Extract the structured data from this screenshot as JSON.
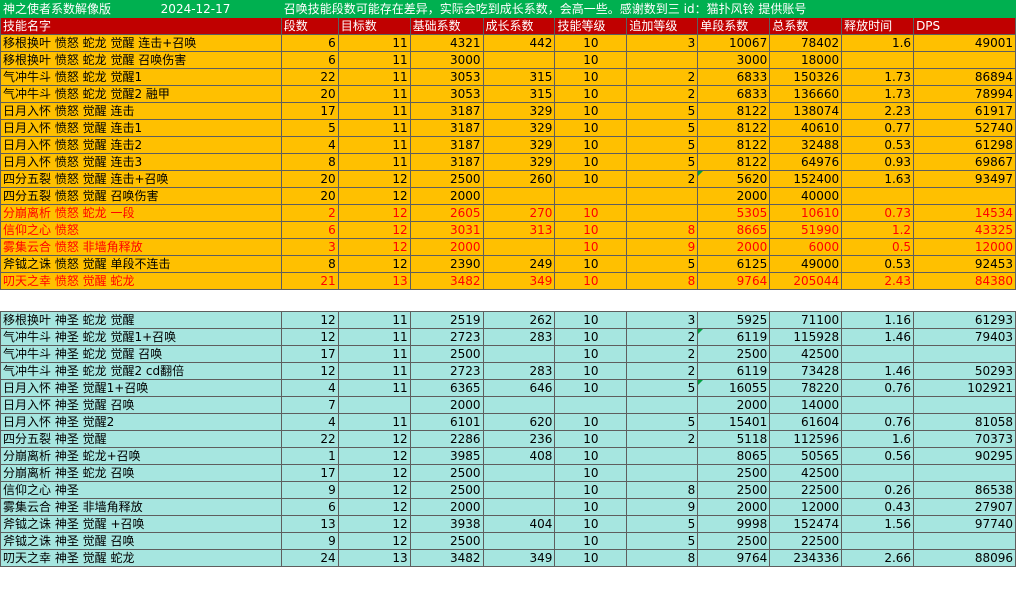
{
  "title": {
    "name": "神之使者系数解像版",
    "date": "2024-12-17",
    "note": "召唤技能段数可能存在差异，实际会吃到成长系数，会高一些。感谢数到三 id：猫扑风铃 提供账号"
  },
  "columns": [
    "技能名字",
    "段数",
    "目标数",
    "基础系数",
    "成长系数",
    "技能等级",
    "追加等级",
    "单段系数",
    "总系数",
    "释放时间",
    "DPS"
  ],
  "group_a": [
    [
      "移根换叶 愤怒 蛇龙 觉醒 连击+召唤",
      "6",
      "11",
      "4321",
      "442",
      "10",
      "3",
      "10067",
      "78402",
      "1.6",
      "49001"
    ],
    [
      "移根换叶 愤怒 蛇龙 觉醒 召唤伤害",
      "6",
      "11",
      "3000",
      "",
      "10",
      "",
      "3000",
      "18000",
      "",
      ""
    ],
    [
      "气冲牛斗 愤怒 蛇龙 觉醒1",
      "22",
      "11",
      "3053",
      "315",
      "10",
      "2",
      "6833",
      "150326",
      "1.73",
      "86894"
    ],
    [
      "气冲牛斗 愤怒 蛇龙 觉醒2 融甲",
      "20",
      "11",
      "3053",
      "315",
      "10",
      "2",
      "6833",
      "136660",
      "1.73",
      "78994"
    ],
    [
      "日月入怀 愤怒 觉醒 连击",
      "17",
      "11",
      "3187",
      "329",
      "10",
      "5",
      "8122",
      "138074",
      "2.23",
      "61917"
    ],
    [
      "日月入怀 愤怒 觉醒 连击1",
      "5",
      "11",
      "3187",
      "329",
      "10",
      "5",
      "8122",
      "40610",
      "0.77",
      "52740"
    ],
    [
      "日月入怀 愤怒 觉醒 连击2",
      "4",
      "11",
      "3187",
      "329",
      "10",
      "5",
      "8122",
      "32488",
      "0.53",
      "61298"
    ],
    [
      "日月入怀 愤怒 觉醒 连击3",
      "8",
      "11",
      "3187",
      "329",
      "10",
      "5",
      "8122",
      "64976",
      "0.93",
      "69867"
    ],
    [
      "四分五裂 愤怒 觉醒 连击+召唤",
      "20",
      "12",
      "2500",
      "260",
      "10",
      "2",
      "5620",
      "152400",
      "1.63",
      "93497"
    ],
    [
      "四分五裂 愤怒 觉醒 召唤伤害",
      "20",
      "12",
      "2000",
      "",
      "",
      "",
      "2000",
      "40000",
      "",
      ""
    ],
    [
      "分崩离析 愤怒 蛇龙  一段",
      "2",
      "12",
      "2605",
      "270",
      "10",
      "",
      "5305",
      "10610",
      "0.73",
      "14534"
    ],
    [
      "信仰之心 愤怒",
      "6",
      "12",
      "3031",
      "313",
      "10",
      "8",
      "8665",
      "51990",
      "1.2",
      "43325"
    ],
    [
      "雾集云合 愤怒   非墙角释放",
      "3",
      "12",
      "2000",
      "",
      "10",
      "9",
      "2000",
      "6000",
      "0.5",
      "12000"
    ],
    [
      "斧钺之诛 愤怒 觉醒  单段不连击",
      "8",
      "12",
      "2390",
      "249",
      "10",
      "5",
      "6125",
      "49000",
      "0.53",
      "92453"
    ],
    [
      "叨天之幸 愤怒 觉醒  蛇龙",
      "21",
      "13",
      "3482",
      "349",
      "10",
      "8",
      "9764",
      "205044",
      "2.43",
      "84380"
    ]
  ],
  "group_b": [
    [
      "移根换叶 神圣 蛇龙 觉醒",
      "12",
      "11",
      "2519",
      "262",
      "10",
      "3",
      "5925",
      "71100",
      "1.16",
      "61293"
    ],
    [
      "气冲牛斗 神圣 蛇龙 觉醒1+召唤",
      "12",
      "11",
      "2723",
      "283",
      "10",
      "2",
      "6119",
      "115928",
      "1.46",
      "79403"
    ],
    [
      "气冲牛斗 神圣 蛇龙 觉醒 召唤",
      "17",
      "11",
      "2500",
      "",
      "10",
      "2",
      "2500",
      "42500",
      "",
      ""
    ],
    [
      "气冲牛斗 神圣 蛇龙 觉醒2 cd翻倍",
      "12",
      "11",
      "2723",
      "283",
      "10",
      "2",
      "6119",
      "73428",
      "1.46",
      "50293"
    ],
    [
      "日月入怀 神圣 觉醒1+召唤",
      "4",
      "11",
      "6365",
      "646",
      "10",
      "5",
      "16055",
      "78220",
      "0.76",
      "102921"
    ],
    [
      "日月入怀 神圣 觉醒 召唤",
      "7",
      "",
      "2000",
      "",
      "",
      "",
      "2000",
      "14000",
      "",
      ""
    ],
    [
      "日月入怀 神圣 觉醒2",
      "4",
      "11",
      "6101",
      "620",
      "10",
      "5",
      "15401",
      "61604",
      "0.76",
      "81058"
    ],
    [
      "四分五裂 神圣 觉醒",
      "22",
      "12",
      "2286",
      "236",
      "10",
      "2",
      "5118",
      "112596",
      "1.6",
      "70373"
    ],
    [
      "分崩离析 神圣 蛇龙+召唤",
      "1",
      "12",
      "3985",
      "408",
      "10",
      "",
      "8065",
      "50565",
      "0.56",
      "90295"
    ],
    [
      "分崩离析 神圣 蛇龙 召唤",
      "17",
      "12",
      "2500",
      "",
      "10",
      "",
      "2500",
      "42500",
      "",
      ""
    ],
    [
      "信仰之心 神圣",
      "9",
      "12",
      "2500",
      "",
      "10",
      "8",
      "2500",
      "22500",
      "0.26",
      "86538"
    ],
    [
      "雾集云合 神圣 非墙角释放",
      "6",
      "12",
      "2000",
      "",
      "10",
      "9",
      "2000",
      "12000",
      "0.43",
      "27907"
    ],
    [
      "斧钺之诛 神圣 觉醒  +召唤",
      "13",
      "12",
      "3938",
      "404",
      "10",
      "5",
      "9998",
      "152474",
      "1.56",
      "97740"
    ],
    [
      "斧钺之诛 神圣 觉醒  召唤",
      "9",
      "12",
      "2500",
      "",
      "10",
      "5",
      "2500",
      "22500",
      "",
      ""
    ],
    [
      "叨天之幸 神圣 觉醒  蛇龙",
      "24",
      "13",
      "3482",
      "349",
      "10",
      "8",
      "9764",
      "234336",
      "2.66",
      "88096"
    ]
  ],
  "colors": {
    "title_bg": "#00b050",
    "header_bg": "#c00000",
    "group_a_bg": "#ffc000",
    "group_b_bg": "#a6e6e0",
    "highlight_text": "#ff0000"
  }
}
